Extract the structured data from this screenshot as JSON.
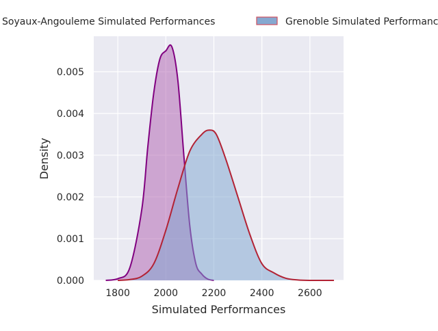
{
  "chart_data": {
    "type": "area",
    "kind": "kde",
    "title": "",
    "xlabel": "Simulated Performances",
    "ylabel": "Density",
    "xlim": [
      1700,
      2740
    ],
    "ylim": [
      0,
      0.00585
    ],
    "xticks": [
      1800,
      2000,
      2200,
      2400,
      2600
    ],
    "xtick_labels": [
      "1800",
      "2000",
      "2200",
      "2400",
      "2600"
    ],
    "yticks": [
      0,
      0.001,
      0.002,
      0.003,
      0.004,
      0.005
    ],
    "ytick_labels": [
      "0.000",
      "0.001",
      "0.002",
      "0.003",
      "0.004",
      "0.005"
    ],
    "grid": true,
    "legend_position": "top (outside, clipped)",
    "series": [
      {
        "name": "Soyaux-Angouleme Simulated Performances",
        "line_color": "#800080",
        "fill_color": "#b05fb0",
        "x": [
          1750,
          1800,
          1850,
          1900,
          1925,
          1950,
          1975,
          2000,
          2025,
          2050,
          2075,
          2100,
          2125,
          2150,
          2175,
          2200
        ],
        "y": [
          0,
          4e-05,
          0.0003,
          0.0017,
          0.0032,
          0.0045,
          0.0053,
          0.0055,
          0.0056,
          0.0048,
          0.003,
          0.0013,
          0.0004,
          0.00015,
          3e-05,
          0
        ]
      },
      {
        "name": "Grenoble Simulated Performances",
        "line_color": "#b22234",
        "fill_color": "#7ea6cf",
        "x": [
          1800,
          1850,
          1900,
          1950,
          2000,
          2050,
          2100,
          2150,
          2180,
          2210,
          2250,
          2300,
          2350,
          2400,
          2450,
          2500,
          2550,
          2600,
          2700
        ],
        "y": [
          0,
          2e-05,
          0.0001,
          0.0004,
          0.0012,
          0.0022,
          0.0031,
          0.0035,
          0.0036,
          0.0035,
          0.0029,
          0.002,
          0.0011,
          0.0004,
          0.00018,
          5e-05,
          1e-05,
          0,
          0
        ]
      }
    ]
  }
}
